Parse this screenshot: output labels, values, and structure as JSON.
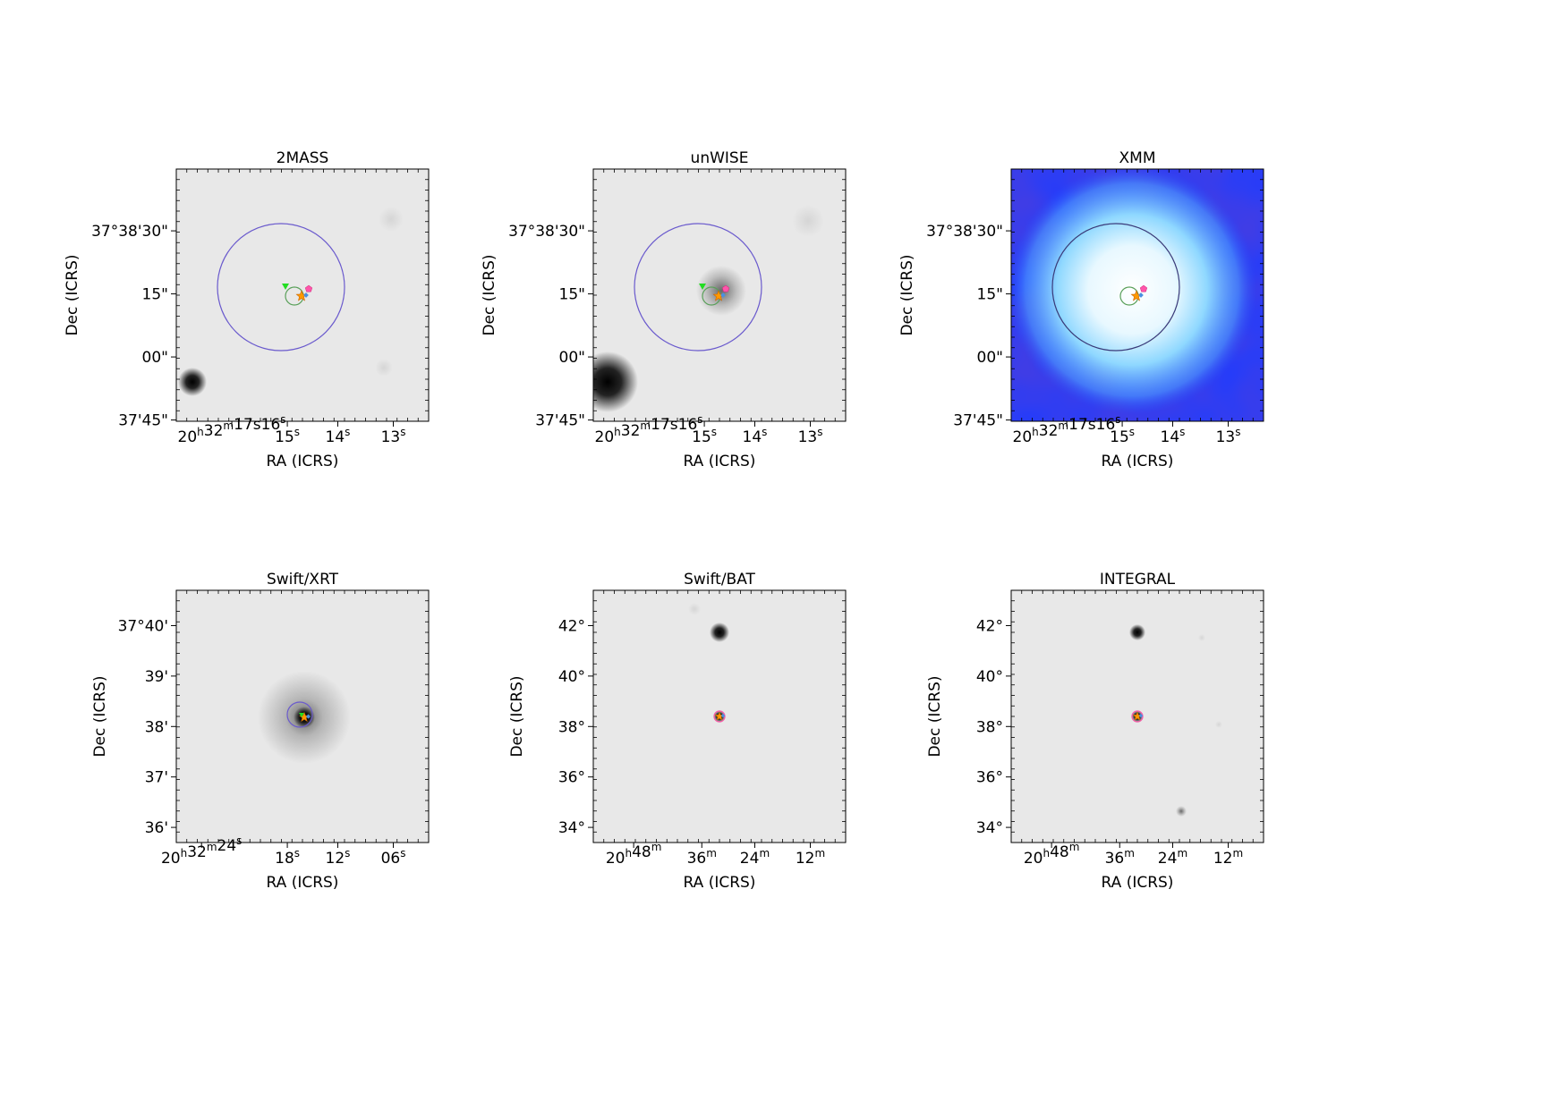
{
  "figure": {
    "panels": [
      {
        "title": "2MASS",
        "image": "gray-optical",
        "xlabel": "RA (ICRS)",
        "ylabel": "Dec (ICRS)",
        "xticks": [
          {
            "text": "20h32m17s16s",
            "parts": [
              [
                "20",
                "h"
              ],
              [
                "32",
                "m"
              ],
              [
                "17",
                ""
              ],
              [
                "s",
                ""
              ],
              [
                "16",
                "s"
              ]
            ],
            "slot": 0
          },
          {
            "parts": [
              [
                "15",
                "s"
              ]
            ],
            "slot": 1
          },
          {
            "parts": [
              [
                "14",
                "s"
              ]
            ],
            "slot": 2
          },
          {
            "parts": [
              [
                "13",
                "s"
              ]
            ],
            "slot": 3
          }
        ],
        "yticks": [
          "37°38'30\"",
          "15\"",
          "00\"",
          "37'45\""
        ],
        "features": {
          "big_circle": true,
          "blob_ll": "small",
          "blob_center": false,
          "ring_green": true,
          "markers": true
        }
      },
      {
        "title": "unWISE",
        "image": "gray-ir",
        "xlabel": "RA (ICRS)",
        "ylabel": "Dec (ICRS)",
        "xticks": [
          {
            "parts": [
              [
                "20",
                "h"
              ],
              [
                "32",
                "m"
              ],
              [
                "17",
                ""
              ],
              [
                "s",
                ""
              ],
              [
                "16",
                "s"
              ]
            ],
            "slot": 0
          },
          {
            "parts": [
              [
                "15",
                "s"
              ]
            ],
            "slot": 1
          },
          {
            "parts": [
              [
                "14",
                "s"
              ]
            ],
            "slot": 2
          },
          {
            "parts": [
              [
                "13",
                "s"
              ]
            ],
            "slot": 3
          }
        ],
        "yticks": [
          "37°38'30\"",
          "15\"",
          "00\"",
          "37'45\""
        ],
        "features": {
          "big_circle": true,
          "blob_ll": "large",
          "blob_center": true,
          "ring_green": true,
          "markers": true
        }
      },
      {
        "title": "XMM",
        "image": "blue-xray",
        "xlabel": "RA (ICRS)",
        "ylabel": "Dec (ICRS)",
        "xticks": [
          {
            "parts": [
              [
                "20",
                "h"
              ],
              [
                "32",
                "m"
              ],
              [
                "17",
                ""
              ],
              [
                "s",
                ""
              ],
              [
                "16",
                "s"
              ]
            ],
            "slot": 0
          },
          {
            "parts": [
              [
                "15",
                "s"
              ]
            ],
            "slot": 1
          },
          {
            "parts": [
              [
                "14",
                "s"
              ]
            ],
            "slot": 2
          },
          {
            "parts": [
              [
                "13",
                "s"
              ]
            ],
            "slot": 3
          }
        ],
        "yticks": [
          "37°38'30\"",
          "15\"",
          "00\"",
          "37'45\""
        ],
        "features": {
          "big_circle": true,
          "blob_ll": "none",
          "blob_center": false,
          "ring_green": true,
          "markers": true
        }
      },
      {
        "title": "Swift/XRT",
        "image": "gray-xrt",
        "xlabel": "RA (ICRS)",
        "ylabel": "Dec (ICRS)",
        "xticks": [
          {
            "parts": [
              [
                "20",
                "h"
              ],
              [
                "32",
                "m"
              ],
              [
                "24",
                "s"
              ]
            ],
            "slot": 0
          },
          {
            "parts": [
              [
                "18",
                "s"
              ]
            ],
            "slot": 1
          },
          {
            "parts": [
              [
                "12",
                "s"
              ]
            ],
            "slot": 2
          },
          {
            "parts": [
              [
                "06",
                "s"
              ]
            ],
            "slot": 3
          }
        ],
        "yticks": [
          "37°40'",
          "39'",
          "38'",
          "37'",
          "36'"
        ],
        "features": {
          "big_circle": false,
          "blob_ll": "none",
          "blob_center": false,
          "ring_green": false,
          "markers": true
        }
      },
      {
        "title": "Swift/BAT",
        "image": "gray-bat",
        "xlabel": "RA (ICRS)",
        "ylabel": "Dec (ICRS)",
        "xticks": [
          {
            "parts": [
              [
                "20",
                "h"
              ],
              [
                "48",
                "m"
              ]
            ],
            "slot": 0
          },
          {
            "parts": [
              [
                "36",
                "m"
              ]
            ],
            "slot": 1
          },
          {
            "parts": [
              [
                "24",
                "m"
              ]
            ],
            "slot": 2
          },
          {
            "parts": [
              [
                "12",
                "m"
              ]
            ],
            "slot": 3
          }
        ],
        "yticks": [
          "42°",
          "40°",
          "38°",
          "36°",
          "34°"
        ],
        "features": {
          "big_circle": false,
          "blob_ll": "none",
          "blob_center": false,
          "ring_green": false,
          "markers": true
        }
      },
      {
        "title": "INTEGRAL",
        "image": "gray-integral",
        "xlabel": "RA (ICRS)",
        "ylabel": "Dec (ICRS)",
        "xticks": [
          {
            "parts": [
              [
                "20",
                "h"
              ],
              [
                "48",
                "m"
              ]
            ],
            "slot": 0
          },
          {
            "parts": [
              [
                "36",
                "m"
              ]
            ],
            "slot": 1
          },
          {
            "parts": [
              [
                "24",
                "m"
              ]
            ],
            "slot": 2
          },
          {
            "parts": [
              [
                "12",
                "m"
              ]
            ],
            "slot": 3
          }
        ],
        "yticks": [
          "42°",
          "40°",
          "38°",
          "36°",
          "34°"
        ],
        "features": {
          "big_circle": false,
          "blob_ll": "none",
          "blob_center": false,
          "ring_green": false,
          "markers": true
        }
      }
    ],
    "colors": {
      "frame": "#000000",
      "background": "#e8e8e8",
      "circle_purple": "#6a5acd",
      "circle_green": "#5aa05a",
      "fov_green": "#66dd66",
      "marker_orange": "#ff9900",
      "marker_pink": "#ff55aa",
      "marker_green": "#22dd22",
      "marker_blue": "#4a90e2",
      "xmm_blue": "#1e3cff"
    }
  }
}
